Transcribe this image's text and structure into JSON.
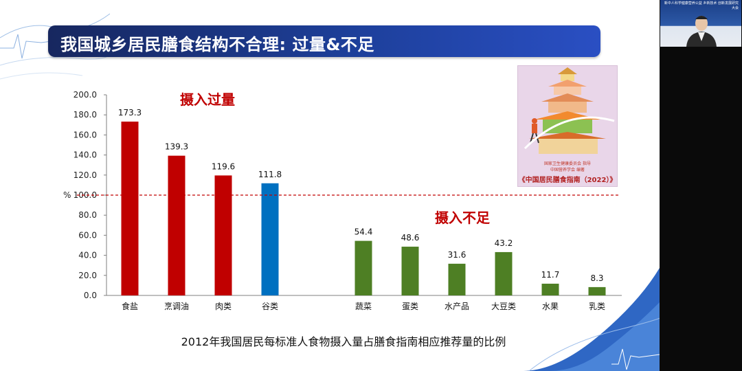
{
  "slide_title": "我国城乡居民膳食结构不合理: 过量&不足",
  "caption": "2012年我国居民每标准人食物摄入量占膳食指南相应推荐量的比例",
  "annotation_excess": "摄入过量",
  "annotation_deficit": "摄入不足",
  "video_caption": "新中人科学健康营养公益 乡新技术 创新发展研究大会",
  "poster": {
    "org_line1": "国家卫生健康委员会  指导",
    "org_line2": "中国营养学会  编著",
    "title": "《中国居民膳食指南（2022）》"
  },
  "colors": {
    "excess": "#c00000",
    "grain": "#0070c0",
    "deficit": "#4e7f24",
    "reference_line": "#c00000",
    "title_bar": "#1d3f9a",
    "annotation_text": "#c00000"
  },
  "chart_data": {
    "type": "bar",
    "categories": [
      "食盐",
      "烹调油",
      "肉类",
      "谷类",
      "蔬菜",
      "蛋类",
      "水产品",
      "大豆类",
      "水果",
      "乳类"
    ],
    "values": [
      173.3,
      139.3,
      119.6,
      111.8,
      54.4,
      48.6,
      31.6,
      43.2,
      11.7,
      8.3
    ],
    "value_labels": [
      "173.3",
      "139.3",
      "119.6",
      "111.8",
      "54.4",
      "48.6",
      "31.6",
      "43.2",
      "11.7",
      "8.3"
    ],
    "bar_colors": [
      "#c00000",
      "#c00000",
      "#c00000",
      "#0070c0",
      "#4e7f24",
      "#4e7f24",
      "#4e7f24",
      "#4e7f24",
      "#4e7f24",
      "#4e7f24"
    ],
    "ylim": [
      0,
      200
    ],
    "yticks": [
      "0.0",
      "20.0",
      "40.0",
      "60.0",
      "80.0",
      "100.0",
      "120.0",
      "140.0",
      "160.0",
      "180.0",
      "200.0"
    ],
    "ylabel": "%",
    "reference_line": 100,
    "grid": false,
    "legend": "none"
  }
}
